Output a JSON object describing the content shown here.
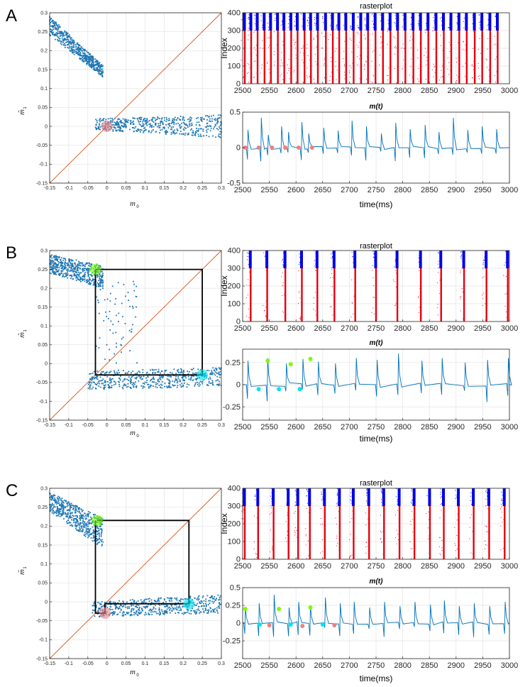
{
  "panel_letters": [
    "A",
    "B",
    "C"
  ],
  "labels": {
    "map_xlabel": "m",
    "map_xlabel_sub": "0",
    "map_ylabel": "m̂",
    "map_ylabel_sub": "1",
    "raster_title": "rasterplot",
    "raster_ylabel": "Index",
    "mt_title": "m(t)",
    "time_xlabel": "time(ms)"
  },
  "colors": {
    "scatter": "#1f77b4",
    "diagonal": "#d95319",
    "raster_exc": "#e6000e",
    "raster_inh": "#0000e6",
    "trace": "#0072bd",
    "marker_red": "#f08080",
    "marker_green": "#7cfc00",
    "marker_cyan": "#00e5ee",
    "cobweb": "#000000"
  },
  "chart_data": [
    {
      "panel": "A",
      "type": "scatter",
      "xlabel": "m0",
      "ylabel": "m̂1",
      "xlim": [
        -0.15,
        0.3
      ],
      "ylim": [
        -0.15,
        0.3
      ],
      "grid": true,
      "xticks": [
        "-0.15",
        "-0.1",
        "-0.05",
        "0",
        "0.05",
        "0.1",
        "0.15",
        "0.2",
        "0.25",
        "0.3"
      ],
      "yticks": [
        "-0.15",
        "-0.1",
        "-0.05",
        "0",
        "0.05",
        "0.1",
        "0.15",
        "0.2",
        "0.25",
        "0.3"
      ],
      "diagonal": true,
      "clusters": [
        {
          "x": [
            -0.15,
            -0.01
          ],
          "y_start": [
            0.24,
            0.29
          ],
          "y_end": [
            0.13,
            0.16
          ]
        },
        {
          "x": [
            -0.03,
            0.3
          ],
          "y_start": [
            -0.01,
            0.02
          ],
          "y_end": [
            -0.03,
            0.03
          ]
        }
      ],
      "markers": [
        {
          "x": 0.0,
          "y": 0.0,
          "color": "red"
        }
      ],
      "cobweb": []
    },
    {
      "panel": "A",
      "type": "raster",
      "title": "rasterplot",
      "ylabel": "Index",
      "xlim": [
        2500,
        3000
      ],
      "ylim": [
        0,
        400
      ],
      "xticks": [
        "2500",
        "2550",
        "2600",
        "2650",
        "2700",
        "2750",
        "2800",
        "2850",
        "2900",
        "2950",
        "3000"
      ],
      "yticks": [
        "0",
        "100",
        "200",
        "300",
        "400"
      ],
      "burst_times": [
        2504,
        2516,
        2528,
        2541,
        2553,
        2566,
        2578,
        2591,
        2603,
        2616,
        2628,
        2641,
        2656,
        2669,
        2681,
        2694,
        2708,
        2722,
        2735,
        2749,
        2763,
        2777,
        2791,
        2805,
        2820,
        2834,
        2848,
        2863,
        2877,
        2891,
        2906,
        2920,
        2935,
        2949,
        2964,
        2978
      ],
      "exc_range": [
        0,
        300
      ],
      "inh_range": [
        300,
        400
      ]
    },
    {
      "panel": "A",
      "type": "line",
      "title": "m(t)",
      "xlabel": "time(ms)",
      "xlim": [
        2500,
        3000
      ],
      "ylim": [
        -0.5,
        0.5
      ],
      "xticks": [
        "2500",
        "2550",
        "2600",
        "2650",
        "2700",
        "2750",
        "2800",
        "2850",
        "2900",
        "2950",
        "3000"
      ],
      "yticks": [
        "-0.5",
        "0",
        "0.5"
      ],
      "peak_times": [
        2510,
        2535,
        2548,
        2573,
        2586,
        2611,
        2624,
        2652,
        2679,
        2705,
        2732,
        2760,
        2787,
        2814,
        2842,
        2868,
        2895,
        2922,
        2949,
        2976
      ],
      "peak_values": [
        0.25,
        0.42,
        0.18,
        0.3,
        0.22,
        0.36,
        0.2,
        0.28,
        0.24,
        0.38,
        0.3,
        0.2,
        0.35,
        0.26,
        0.32,
        0.22,
        0.42,
        0.25,
        0.3,
        0.26
      ],
      "markers": [
        {
          "x": 2505,
          "y": 0,
          "color": "red"
        },
        {
          "x": 2530,
          "y": 0,
          "color": "red"
        },
        {
          "x": 2555,
          "y": 0,
          "color": "red"
        },
        {
          "x": 2580,
          "y": 0,
          "color": "red"
        },
        {
          "x": 2605,
          "y": 0,
          "color": "red"
        },
        {
          "x": 2630,
          "y": 0,
          "color": "red"
        }
      ]
    },
    {
      "panel": "B",
      "type": "scatter",
      "xlabel": "m0",
      "ylabel": "m̂1",
      "xlim": [
        -0.15,
        0.3
      ],
      "ylim": [
        -0.15,
        0.3
      ],
      "grid": true,
      "xticks": [
        "-0.15",
        "-0.1",
        "-0.05",
        "0",
        "0.05",
        "0.1",
        "0.15",
        "0.2",
        "0.25",
        "0.3"
      ],
      "yticks": [
        "-0.15",
        "-0.1",
        "-0.05",
        "0",
        "0.05",
        "0.1",
        "0.15",
        "0.2",
        "0.25",
        "0.3"
      ],
      "diagonal": true,
      "clusters": [
        {
          "x": [
            -0.15,
            -0.01
          ],
          "y_start": [
            0.24,
            0.29
          ],
          "y_end": [
            0.2,
            0.26
          ]
        },
        {
          "x": [
            -0.05,
            0.3
          ],
          "y_start": [
            -0.07,
            -0.02
          ],
          "y_end": [
            -0.06,
            -0.01
          ]
        },
        {
          "x": [
            -0.03,
            0.08
          ],
          "y_start": [
            0.0,
            0.22
          ],
          "y_end": [
            0.0,
            0.22
          ]
        }
      ],
      "markers": [
        {
          "x": -0.03,
          "y": 0.25,
          "color": "green"
        },
        {
          "x": 0.25,
          "y": -0.03,
          "color": "cyan"
        }
      ],
      "cobweb": [
        [
          -0.03,
          0.25
        ],
        [
          0.25,
          0.25
        ],
        [
          0.25,
          -0.03
        ],
        [
          -0.03,
          -0.03
        ],
        [
          -0.03,
          0.25
        ]
      ]
    },
    {
      "panel": "B",
      "type": "raster",
      "title": "rasterplot",
      "ylabel": "Index",
      "xlim": [
        2500,
        3000
      ],
      "ylim": [
        0,
        400
      ],
      "xticks": [
        "2500",
        "2550",
        "2600",
        "2650",
        "2700",
        "2750",
        "2800",
        "2850",
        "2900",
        "2950",
        "3000"
      ],
      "yticks": [
        "0",
        "100",
        "200",
        "300",
        "400"
      ],
      "burst_times": [
        2515,
        2546,
        2580,
        2611,
        2640,
        2672,
        2711,
        2750,
        2790,
        2834,
        2872,
        2915,
        2957,
        2997
      ],
      "exc_range": [
        0,
        300
      ],
      "inh_range": [
        300,
        400
      ]
    },
    {
      "panel": "B",
      "type": "line",
      "title": "m(t)",
      "xlabel": "time(ms)",
      "xlim": [
        2500,
        3000
      ],
      "ylim": [
        -0.4,
        0.4
      ],
      "xticks": [
        "2500",
        "2550",
        "2600",
        "2650",
        "2700",
        "2750",
        "2800",
        "2850",
        "2900",
        "2950",
        "3000"
      ],
      "yticks": [
        "-0.25",
        "0",
        "0.25"
      ],
      "peak_times": [
        2510,
        2547,
        2582,
        2613,
        2642,
        2674,
        2713,
        2752,
        2792,
        2836,
        2874,
        2917,
        2959,
        2998
      ],
      "peak_values": [
        0.27,
        0.3,
        0.24,
        0.29,
        0.26,
        0.24,
        0.3,
        0.28,
        0.35,
        0.27,
        0.3,
        0.25,
        0.28,
        0.3
      ],
      "markers": [
        {
          "x": 2530,
          "y": -0.05,
          "color": "cyan"
        },
        {
          "x": 2547,
          "y": 0.27,
          "color": "green"
        },
        {
          "x": 2568,
          "y": -0.05,
          "color": "cyan"
        },
        {
          "x": 2590,
          "y": 0.23,
          "color": "green"
        },
        {
          "x": 2607,
          "y": -0.05,
          "color": "cyan"
        },
        {
          "x": 2627,
          "y": 0.29,
          "color": "green"
        }
      ]
    },
    {
      "panel": "C",
      "type": "scatter",
      "xlabel": "m0",
      "ylabel": "m̂1",
      "xlim": [
        -0.15,
        0.3
      ],
      "ylim": [
        -0.15,
        0.3
      ],
      "grid": true,
      "xticks": [
        "-0.15",
        "-0.1",
        "-0.05",
        "0",
        "0.05",
        "0.1",
        "0.15",
        "0.2",
        "0.25",
        "0.3"
      ],
      "yticks": [
        "-0.15",
        "-0.1",
        "-0.05",
        "0",
        "0.05",
        "0.1",
        "0.15",
        "0.2",
        "0.25",
        "0.3"
      ],
      "diagonal": true,
      "clusters": [
        {
          "x": [
            -0.15,
            -0.01
          ],
          "y_start": [
            0.24,
            0.29
          ],
          "y_end": [
            0.14,
            0.22
          ]
        },
        {
          "x": [
            -0.04,
            0.3
          ],
          "y_start": [
            -0.04,
            0.0
          ],
          "y_end": [
            -0.03,
            0.02
          ]
        }
      ],
      "markers": [
        {
          "x": -0.025,
          "y": 0.215,
          "color": "green"
        },
        {
          "x": 0.215,
          "y": -0.005,
          "color": "cyan"
        },
        {
          "x": -0.005,
          "y": -0.03,
          "color": "red"
        }
      ],
      "cobweb": [
        [
          -0.025,
          0.215
        ],
        [
          0.215,
          0.215
        ],
        [
          0.215,
          -0.005
        ],
        [
          -0.005,
          -0.005
        ],
        [
          -0.005,
          -0.03
        ],
        [
          -0.03,
          -0.03
        ],
        [
          -0.03,
          0.215
        ]
      ]
    },
    {
      "panel": "C",
      "type": "raster",
      "title": "rasterplot",
      "ylabel": "Index",
      "xlim": [
        2500,
        3000
      ],
      "ylim": [
        0,
        400
      ],
      "xticks": [
        "2500",
        "2550",
        "2600",
        "2650",
        "2700",
        "2750",
        "2800",
        "2850",
        "2900",
        "2950",
        "3000"
      ],
      "yticks": [
        "0",
        "100",
        "200",
        "300",
        "400"
      ],
      "burst_times": [
        2504,
        2529,
        2558,
        2586,
        2604,
        2626,
        2654,
        2682,
        2708,
        2737,
        2765,
        2794,
        2822,
        2851,
        2877,
        2905,
        2933,
        2962,
        2991
      ],
      "exc_range": [
        0,
        300
      ],
      "inh_range": [
        300,
        400
      ]
    },
    {
      "panel": "C",
      "type": "line",
      "title": "m(t)",
      "xlabel": "time(ms)",
      "xlim": [
        2500,
        3000
      ],
      "ylim": [
        -0.5,
        0.5
      ],
      "xticks": [
        "2500",
        "2550",
        "2600",
        "2650",
        "2700",
        "2750",
        "2800",
        "2850",
        "2900",
        "2950",
        "3000"
      ],
      "yticks": [
        "-0.25",
        "0",
        "0.25",
        "0.5"
      ],
      "peak_times": [
        2505,
        2531,
        2559,
        2587,
        2605,
        2627,
        2655,
        2683,
        2709,
        2738,
        2766,
        2795,
        2823,
        2852,
        2878,
        2906,
        2934,
        2963,
        2992
      ],
      "peak_values": [
        0.22,
        0.28,
        0.4,
        0.22,
        0.3,
        0.25,
        0.36,
        0.28,
        0.3,
        0.22,
        0.3,
        0.24,
        0.3,
        0.26,
        0.32,
        0.24,
        0.28,
        0.24,
        0.3
      ],
      "markers": [
        {
          "x": 2505,
          "y": 0.2,
          "color": "green"
        },
        {
          "x": 2532,
          "y": -0.02,
          "color": "cyan"
        },
        {
          "x": 2550,
          "y": -0.03,
          "color": "red"
        },
        {
          "x": 2568,
          "y": 0.2,
          "color": "green"
        },
        {
          "x": 2590,
          "y": -0.02,
          "color": "cyan"
        },
        {
          "x": 2612,
          "y": -0.04,
          "color": "red"
        },
        {
          "x": 2627,
          "y": 0.22,
          "color": "green"
        },
        {
          "x": 2650,
          "y": -0.02,
          "color": "cyan"
        },
        {
          "x": 2672,
          "y": -0.03,
          "color": "red"
        }
      ]
    }
  ]
}
